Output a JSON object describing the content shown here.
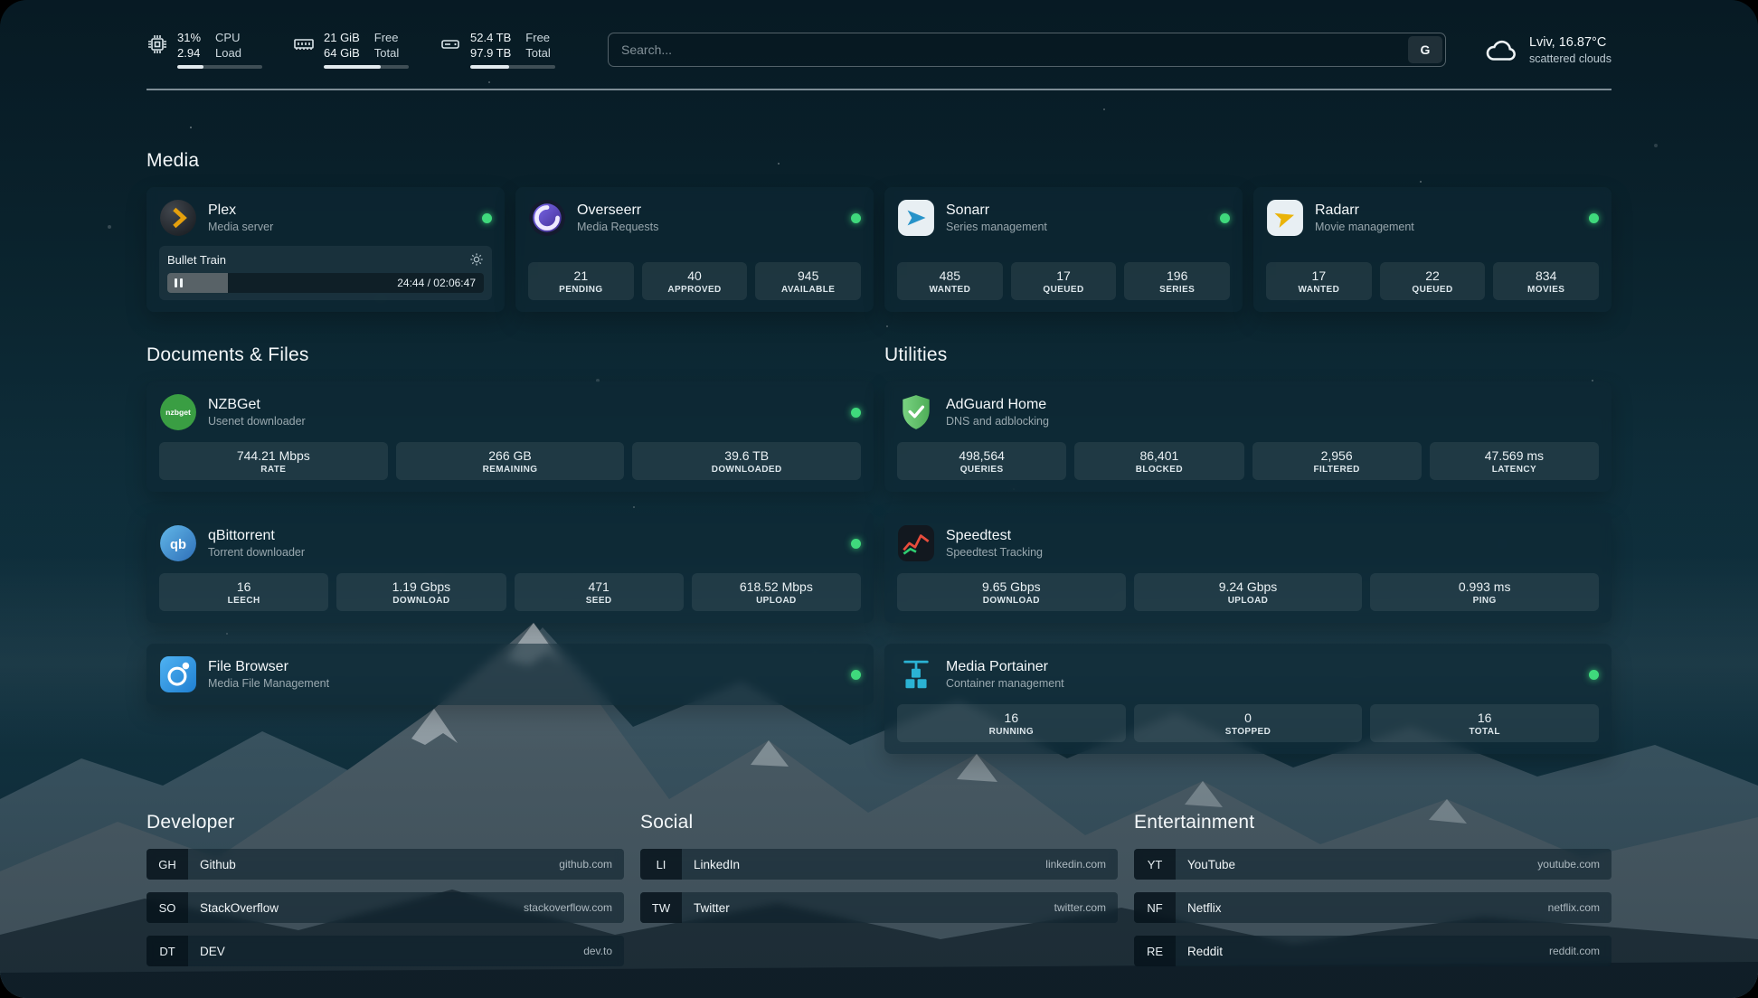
{
  "topbar": {
    "cpu": {
      "value1": "31%",
      "value2": "2.94",
      "label1": "CPU",
      "label2": "Load",
      "progress": 31
    },
    "memory": {
      "value1": "21 GiB",
      "value2": "64 GiB",
      "label1": "Free",
      "label2": "Total",
      "progress": 67
    },
    "disk": {
      "value1": "52.4 TB",
      "value2": "97.9 TB",
      "label1": "Free",
      "label2": "Total",
      "progress": 46
    },
    "search": {
      "placeholder": "Search...",
      "button_label": "G"
    },
    "weather": {
      "location": "Lviv, 16.87°C",
      "condition": "scattered clouds"
    }
  },
  "sections": {
    "media": "Media",
    "documents": "Documents & Files",
    "utilities": "Utilities",
    "developer": "Developer",
    "social": "Social",
    "entertainment": "Entertainment"
  },
  "services": {
    "plex": {
      "name": "Plex",
      "desc": "Media server",
      "status": "online",
      "now_playing": {
        "title": "Bullet Train",
        "time": "24:44 / 02:06:47",
        "progress": 19
      }
    },
    "overseerr": {
      "name": "Overseerr",
      "desc": "Media Requests",
      "status": "online",
      "stats": [
        {
          "value": "21",
          "label": "PENDING"
        },
        {
          "value": "40",
          "label": "APPROVED"
        },
        {
          "value": "945",
          "label": "AVAILABLE"
        }
      ]
    },
    "sonarr": {
      "name": "Sonarr",
      "desc": "Series management",
      "status": "online",
      "stats": [
        {
          "value": "485",
          "label": "WANTED"
        },
        {
          "value": "17",
          "label": "QUEUED"
        },
        {
          "value": "196",
          "label": "SERIES"
        }
      ]
    },
    "radarr": {
      "name": "Radarr",
      "desc": "Movie management",
      "status": "online",
      "stats": [
        {
          "value": "17",
          "label": "WANTED"
        },
        {
          "value": "22",
          "label": "QUEUED"
        },
        {
          "value": "834",
          "label": "MOVIES"
        }
      ]
    },
    "nzbget": {
      "name": "NZBGet",
      "desc": "Usenet downloader",
      "status": "online",
      "icon_text": "nzbget",
      "stats": [
        {
          "value": "744.21 Mbps",
          "label": "RATE"
        },
        {
          "value": "266 GB",
          "label": "REMAINING"
        },
        {
          "value": "39.6 TB",
          "label": "DOWNLOADED"
        }
      ]
    },
    "qbittorrent": {
      "name": "qBittorrent",
      "desc": "Torrent downloader",
      "status": "online",
      "icon_text": "qb",
      "stats": [
        {
          "value": "16",
          "label": "LEECH"
        },
        {
          "value": "1.19 Gbps",
          "label": "DOWNLOAD"
        },
        {
          "value": "471",
          "label": "SEED"
        },
        {
          "value": "618.52 Mbps",
          "label": "UPLOAD"
        }
      ]
    },
    "filebrowser": {
      "name": "File Browser",
      "desc": "Media File Management",
      "status": "online"
    },
    "adguard": {
      "name": "AdGuard Home",
      "desc": "DNS and adblocking",
      "stats": [
        {
          "value": "498,564",
          "label": "QUERIES"
        },
        {
          "value": "86,401",
          "label": "BLOCKED"
        },
        {
          "value": "2,956",
          "label": "FILTERED"
        },
        {
          "value": "47.569 ms",
          "label": "LATENCY"
        }
      ]
    },
    "speedtest": {
      "name": "Speedtest",
      "desc": "Speedtest Tracking",
      "stats": [
        {
          "value": "9.65 Gbps",
          "label": "DOWNLOAD"
        },
        {
          "value": "9.24 Gbps",
          "label": "UPLOAD"
        },
        {
          "value": "0.993 ms",
          "label": "PING"
        }
      ]
    },
    "portainer": {
      "name": "Media Portainer",
      "desc": "Container management",
      "status": "online",
      "stats": [
        {
          "value": "16",
          "label": "RUNNING"
        },
        {
          "value": "0",
          "label": "STOPPED"
        },
        {
          "value": "16",
          "label": "TOTAL"
        }
      ]
    }
  },
  "bookmarks": {
    "developer": [
      {
        "abbr": "GH",
        "name": "Github",
        "url": "github.com"
      },
      {
        "abbr": "SO",
        "name": "StackOverflow",
        "url": "stackoverflow.com"
      },
      {
        "abbr": "DT",
        "name": "DEV",
        "url": "dev.to"
      }
    ],
    "social": [
      {
        "abbr": "LI",
        "name": "LinkedIn",
        "url": "linkedin.com"
      },
      {
        "abbr": "TW",
        "name": "Twitter",
        "url": "twitter.com"
      }
    ],
    "entertainment": [
      {
        "abbr": "YT",
        "name": "YouTube",
        "url": "youtube.com"
      },
      {
        "abbr": "NF",
        "name": "Netflix",
        "url": "netflix.com"
      },
      {
        "abbr": "RE",
        "name": "Reddit",
        "url": "reddit.com"
      }
    ]
  },
  "colors": {
    "status_online": "#3fd97c",
    "plex_accent": "#e5a00d",
    "overseerr_accent": "#7a5af5",
    "sonarr_accent": "#2793c9",
    "radarr_accent": "#f7c11c",
    "nzbget_accent": "#3a9e43",
    "qbittorrent_accent": "#2e6fb8",
    "filebrowser_accent": "#2f9ae0",
    "adguard_accent": "#5cb863",
    "portainer_accent": "#2bb3d4",
    "progress_fill": "#e2eaee"
  }
}
